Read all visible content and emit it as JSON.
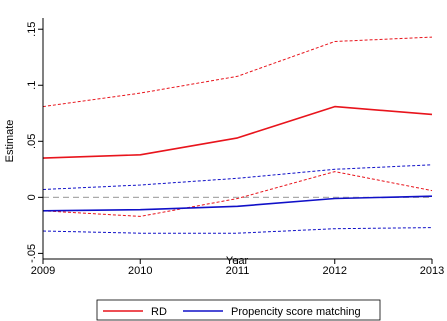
{
  "chart_data": {
    "type": "line",
    "title": "",
    "xlabel": "Year",
    "ylabel": "Estimate",
    "x": [
      2009,
      2010,
      2011,
      2012,
      2013
    ],
    "xticks": [
      "2009",
      "2010",
      "2011",
      "2012",
      "2013"
    ],
    "xlim": [
      2009,
      2013
    ],
    "ylim": [
      -0.055,
      0.16
    ],
    "yticks": [
      {
        "value": -0.05,
        "label": "-.05"
      },
      {
        "value": 0,
        "label": "0"
      },
      {
        "value": 0.05,
        "label": ".05"
      },
      {
        "value": 0.1,
        "label": ".1"
      },
      {
        "value": 0.15,
        "label": ".15"
      }
    ],
    "reference_line": {
      "y": 0,
      "style": "dashed",
      "color": "#aaaaaa"
    },
    "grid": false,
    "legend": {
      "position": "bottom"
    },
    "series": [
      {
        "name": "RD",
        "role": "estimate",
        "style": "solid",
        "color": "#e8141c",
        "values": [
          0.035,
          0.038,
          0.053,
          0.081,
          0.074
        ]
      },
      {
        "name": "",
        "role": "upper-ci",
        "style": "dashed",
        "color": "#e8141c",
        "values": [
          0.081,
          0.093,
          0.108,
          0.139,
          0.143
        ]
      },
      {
        "name": "",
        "role": "lower-ci",
        "style": "dashed",
        "color": "#e8141c",
        "values": [
          -0.012,
          -0.017,
          -0.001,
          0.023,
          0.006
        ]
      },
      {
        "name": "Propencity score matching",
        "role": "estimate",
        "style": "solid",
        "color": "#1010c8",
        "values": [
          -0.012,
          -0.011,
          -0.008,
          -0.001,
          0.001
        ]
      },
      {
        "name": "",
        "role": "upper-ci",
        "style": "dashed",
        "color": "#1010c8",
        "values": [
          0.007,
          0.011,
          0.017,
          0.025,
          0.029
        ]
      },
      {
        "name": "",
        "role": "lower-ci",
        "style": "dashed",
        "color": "#1010c8",
        "values": [
          -0.03,
          -0.032,
          -0.032,
          -0.028,
          -0.027
        ]
      }
    ]
  }
}
